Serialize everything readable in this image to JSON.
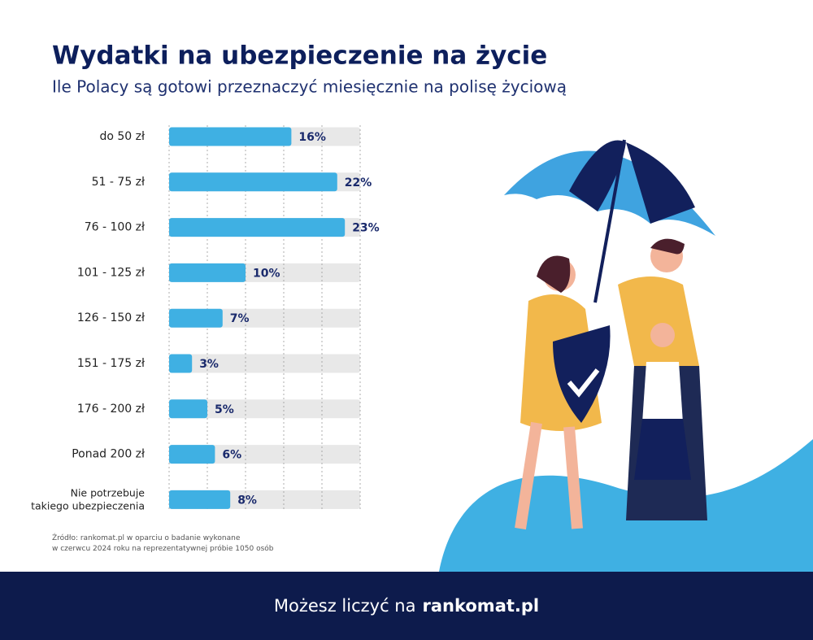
{
  "chart_data": {
    "type": "bar",
    "orientation": "horizontal",
    "title": "Wydatki na ubezpieczenie na życie",
    "subtitle": "Ile Polacy są gotowi przeznaczyć miesięcznie na polisę życiową",
    "categories": [
      "do 50 zł",
      "51 - 75 zł",
      "76 - 100 zł",
      "101 - 125 zł",
      "126 - 150 zł",
      "151 - 175 zł",
      "176 - 200 zł",
      "Ponad 200 zł",
      "Nie potrzebuje\ntakiego ubezpieczenia"
    ],
    "values": [
      16,
      22,
      23,
      10,
      7,
      3,
      5,
      6,
      8
    ],
    "value_labels": [
      "16%",
      "22%",
      "23%",
      "10%",
      "7%",
      "3%",
      "5%",
      "6%",
      "8%"
    ],
    "color": "#3fb0e3",
    "xlim": [
      0,
      25
    ],
    "xticks": [
      0,
      5,
      10,
      15,
      20,
      25
    ],
    "grid": true,
    "source": "Źródło: rankomat.pl w oparciu o badanie wykonane\nw czerwcu 2024 roku na reprezentatywnej próbie 1050 osób"
  },
  "footer": {
    "text": "Możesz liczyć na",
    "brand": "rankomat.pl"
  }
}
